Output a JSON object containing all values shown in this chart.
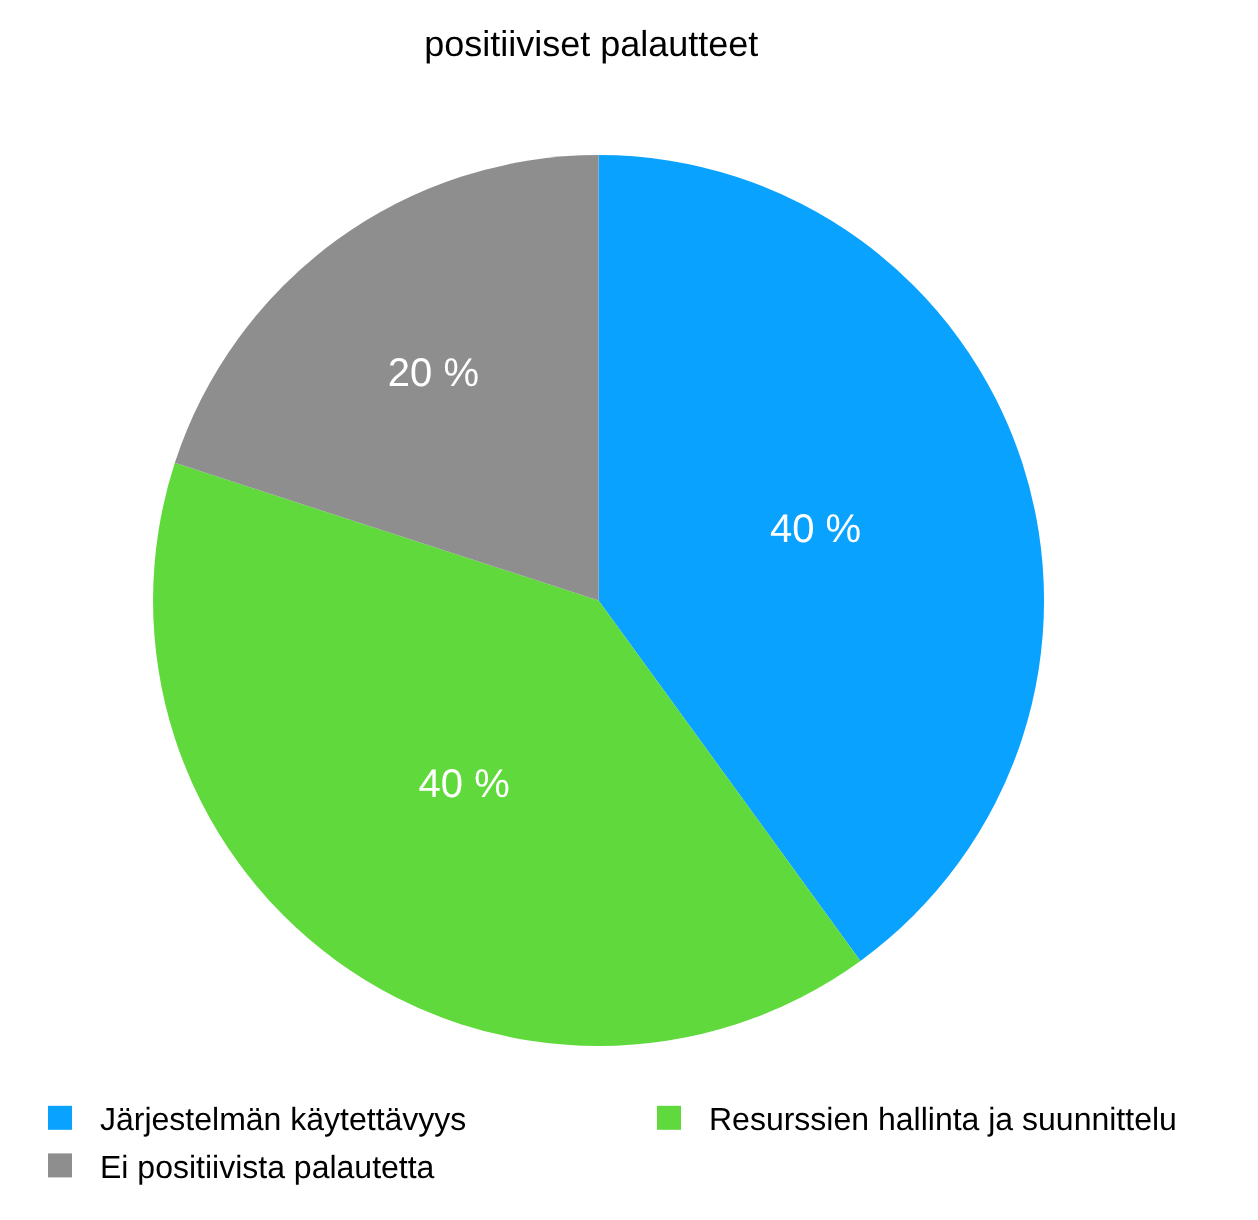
{
  "chart_data": {
    "type": "pie",
    "title": "positiiviset palautteet",
    "categories": [
      "Järjestelmän käytettävyys",
      "Resurssien hallinta ja suunnittelu",
      "Ei positiivista palautetta"
    ],
    "values": [
      40,
      40,
      20
    ],
    "colors": [
      "#0aa2ff",
      "#5fd93b",
      "#8e8e8e"
    ],
    "value_labels": [
      "40 %",
      "40 %",
      "20 %"
    ],
    "legend": "bottom"
  }
}
